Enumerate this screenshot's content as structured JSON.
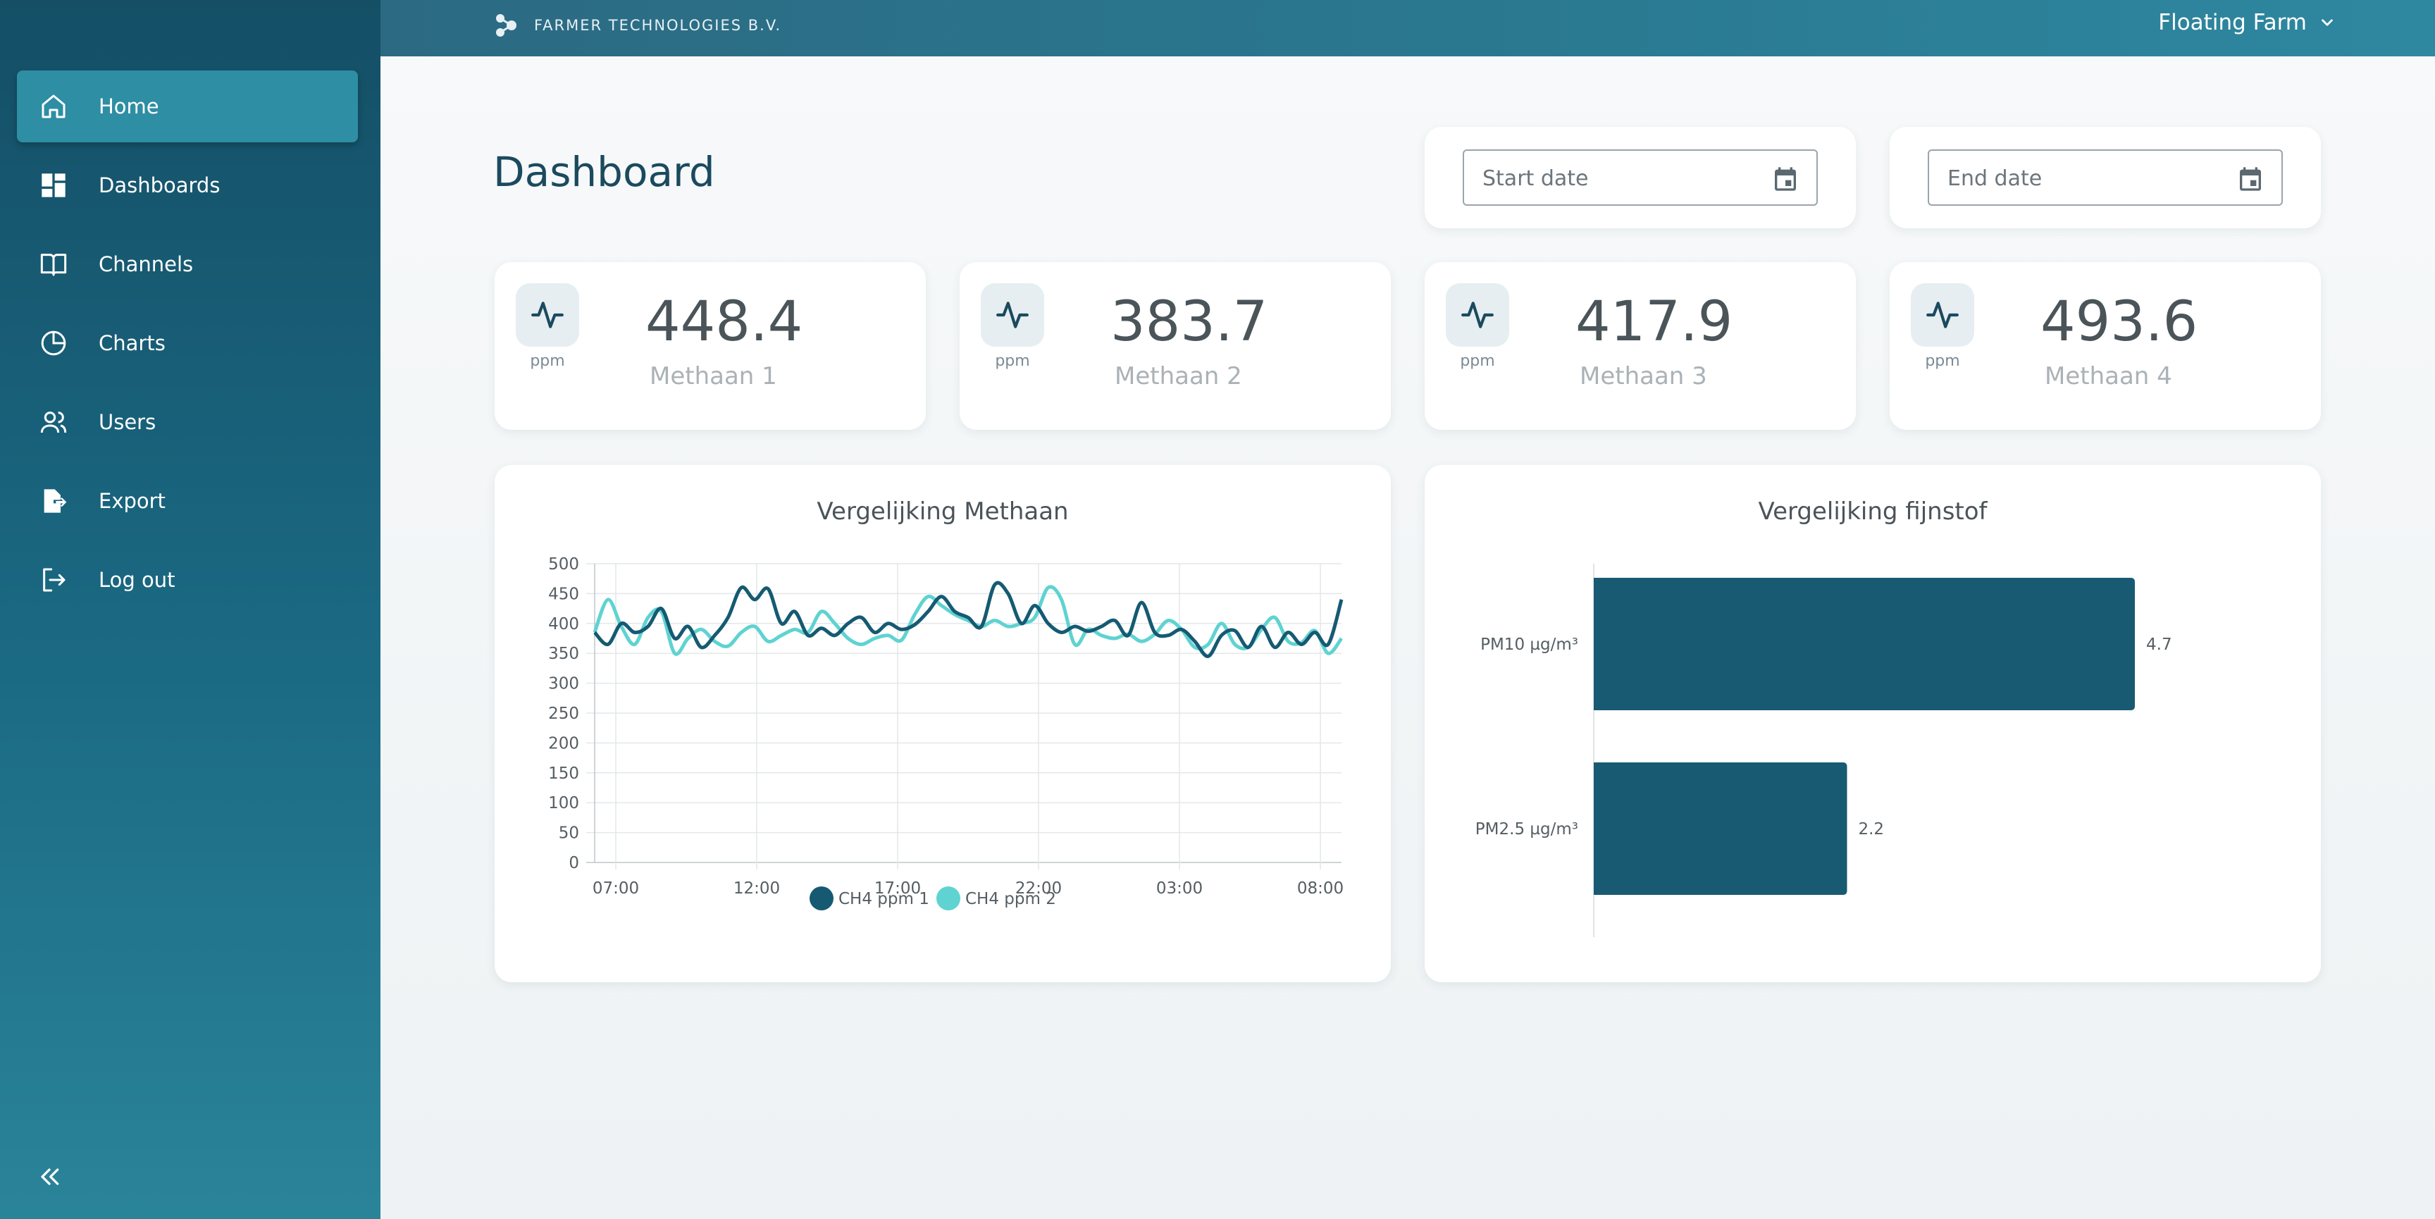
{
  "topbar": {
    "brand": "FARMER TECHNOLOGIES B.V.",
    "farm": "Floating Farm"
  },
  "sidebar": {
    "items": [
      {
        "label": "Home",
        "icon": "home-icon",
        "active": true
      },
      {
        "label": "Dashboards",
        "icon": "dashboard-grid-icon"
      },
      {
        "label": "Channels",
        "icon": "book-icon"
      },
      {
        "label": "Charts",
        "icon": "pie-chart-icon"
      },
      {
        "label": "Users",
        "icon": "users-icon"
      },
      {
        "label": "Export",
        "icon": "export-file-icon"
      },
      {
        "label": "Log out",
        "icon": "logout-icon"
      }
    ],
    "collapse_icon": "chevron-double-left-icon"
  },
  "page": {
    "title": "Dashboard",
    "start_date_placeholder": "Start date",
    "end_date_placeholder": "End date"
  },
  "stats": [
    {
      "value": "448.4",
      "unit": "ppm",
      "name": "Methaan 1"
    },
    {
      "value": "383.7",
      "unit": "ppm",
      "name": "Methaan 2"
    },
    {
      "value": "417.9",
      "unit": "ppm",
      "name": "Methaan 3"
    },
    {
      "value": "493.6",
      "unit": "ppm",
      "name": "Methaan 4"
    }
  ],
  "colors": {
    "series_dark": "#155a72",
    "series_light": "#5fd3d1",
    "bar": "#185a72",
    "accent": "#2e8ea3"
  },
  "chart_data": [
    {
      "type": "line",
      "title": "Vergelijking Methaan",
      "x_ticks": [
        "07:00",
        "12:00",
        "17:00",
        "22:00",
        "03:00",
        "08:00"
      ],
      "ylim": [
        0,
        500
      ],
      "y_ticks": [
        0,
        50,
        100,
        150,
        200,
        250,
        300,
        350,
        400,
        450,
        500
      ],
      "grid": true,
      "legend": "bottom",
      "series": [
        {
          "name": "CH4 ppm 1",
          "color": "#155a72",
          "values": [
            385,
            365,
            400,
            385,
            395,
            425,
            375,
            395,
            360,
            380,
            410,
            460,
            440,
            458,
            400,
            420,
            380,
            392,
            380,
            400,
            410,
            385,
            400,
            390,
            398,
            420,
            445,
            420,
            410,
            395,
            465,
            450,
            400,
            430,
            400,
            385,
            395,
            387,
            395,
            405,
            380,
            435,
            385,
            380,
            390,
            370,
            345,
            380,
            388,
            360,
            395,
            360,
            385,
            365,
            385,
            365,
            440
          ]
        },
        {
          "name": "CH4 ppm 2",
          "color": "#5fd3d1",
          "values": [
            385,
            440,
            395,
            365,
            410,
            420,
            350,
            375,
            390,
            370,
            362,
            385,
            395,
            370,
            380,
            390,
            385,
            420,
            400,
            375,
            365,
            375,
            380,
            372,
            415,
            445,
            430,
            415,
            405,
            395,
            405,
            395,
            400,
            410,
            460,
            440,
            365,
            390,
            380,
            375,
            382,
            370,
            382,
            405,
            390,
            360,
            365,
            400,
            365,
            360,
            390,
            410,
            370,
            368,
            388,
            350,
            375
          ]
        }
      ]
    },
    {
      "type": "bar",
      "orientation": "horizontal",
      "title": "Vergelijking fijnstof",
      "categories": [
        "PM10 µg/m³",
        "PM2.5 µg/m³"
      ],
      "values": [
        4.7,
        2.2
      ],
      "data_labels": [
        "4.7",
        "2.2"
      ],
      "color": "#185a72"
    }
  ]
}
